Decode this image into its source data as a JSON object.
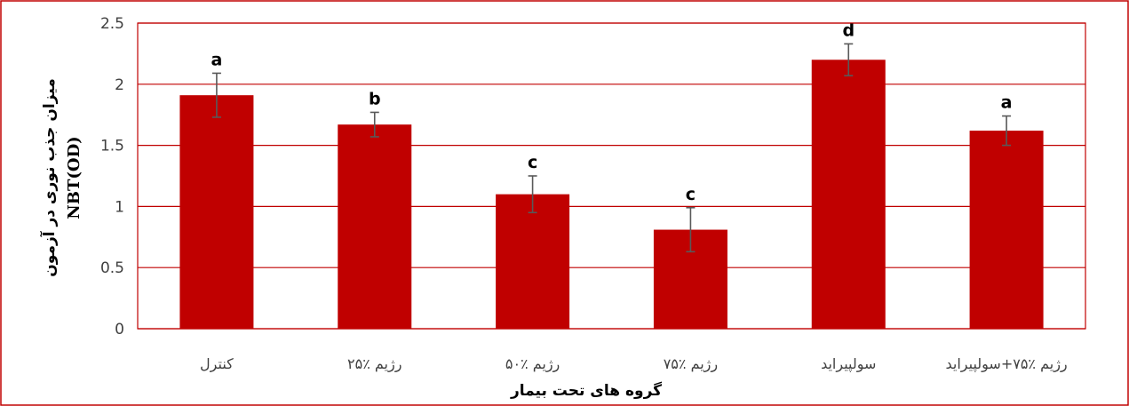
{
  "chart_data": {
    "type": "bar",
    "categories": [
      "کنترل",
      "رژیم ٪۲۵",
      "رژیم ٪۵۰",
      "رژیم ٪۷۵",
      "سولپیراید",
      "رژیم ٪۷۵+سولپیراید"
    ],
    "values": [
      1.91,
      1.67,
      1.1,
      0.81,
      2.2,
      1.62
    ],
    "errors": [
      0.18,
      0.1,
      0.15,
      0.18,
      0.13,
      0.12
    ],
    "significance_letters": [
      "a",
      "b",
      "c",
      "c",
      "d",
      "a"
    ],
    "xlabel": "گروه های تحت بیمار",
    "ylabel_line1": "میزان جذب نوری در آزمون",
    "ylabel_line2": "NBT(OD)",
    "ylim": [
      0,
      2.5
    ],
    "yticks": [
      "0",
      "0.5",
      "1",
      "1.5",
      "2",
      "2.5"
    ],
    "grid": true,
    "colors": {
      "bar": "#c00000",
      "grid": "#c00000",
      "border": "#c00000",
      "error_bar": "#595959"
    }
  }
}
